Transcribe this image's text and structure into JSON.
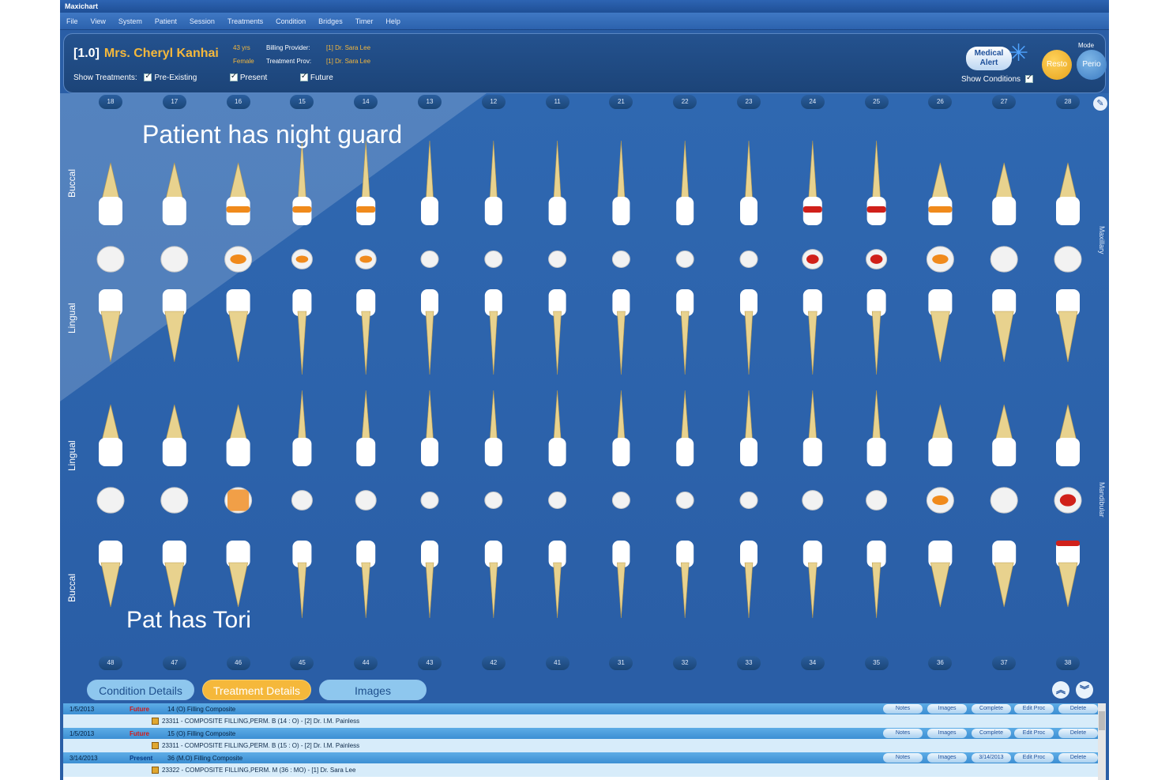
{
  "window": {
    "title": "Maxichart"
  },
  "menu": [
    "File",
    "View",
    "System",
    "Patient",
    "Session",
    "Treatments",
    "Condition",
    "Bridges",
    "Timer",
    "Help"
  ],
  "patient": {
    "id": "[1.0]",
    "name": "Mrs. Cheryl Kanhai",
    "age": "43 yrs",
    "gender": "Female",
    "billing_label": "Billing Provider:",
    "billing_value": "[1] Dr. Sara Lee",
    "treatment_label": "Treatment Prov:",
    "treatment_value": "[1] Dr. Sara Lee"
  },
  "show_treatments": {
    "label": "Show Treatments:",
    "options": [
      "Pre-Existing",
      "Present",
      "Future"
    ]
  },
  "medical_alert": {
    "line1": "Medical",
    "line2": "Alert"
  },
  "show_conditions": "Show Conditions",
  "mode": {
    "label": "Mode",
    "resto": "Resto",
    "perio": "Perio"
  },
  "upper_teeth": [
    "18",
    "17",
    "16",
    "15",
    "14",
    "13",
    "12",
    "11",
    "21",
    "22",
    "23",
    "24",
    "25",
    "26",
    "27",
    "28"
  ],
  "lower_teeth": [
    "48",
    "47",
    "46",
    "45",
    "44",
    "43",
    "42",
    "41",
    "31",
    "32",
    "33",
    "34",
    "35",
    "36",
    "37",
    "38"
  ],
  "side_labels": {
    "upper_buccal": "Buccal",
    "upper_lingual": "Lingual",
    "lower_lingual": "Lingual",
    "lower_buccal": "Buccal"
  },
  "right_labels": {
    "upper": "Maxillary",
    "lower": "Mandibular"
  },
  "notes": {
    "upper": "Patient has night guard",
    "lower": "Pat has Tori"
  },
  "colors": {
    "accent": "#f5b83b",
    "background": "#2a5ea6",
    "restoration_red": "#d0201a",
    "restoration_orange": "#f08a1c",
    "enamel": "#ffffff",
    "root": "#e8d28e"
  },
  "tabs": {
    "condition": "Condition Details",
    "treatment": "Treatment Details",
    "images": "Images"
  },
  "actions": {
    "notes": "Notes",
    "images": "Images",
    "complete": "Complete",
    "edit": "Edit Proc",
    "delete": "Delete"
  },
  "treatments": [
    {
      "date": "1/5/2013",
      "status": "Future",
      "desc": "14 (O) Filling Composite",
      "sub": "23311 - COMPOSITE FILLING,PERM. B (14 : O) - [2] Dr. I.M. Painless",
      "third": "Complete"
    },
    {
      "date": "1/5/2013",
      "status": "Future",
      "desc": "15 (O) Filling Composite",
      "sub": "23311 - COMPOSITE FILLING,PERM. B (15 : O) - [2] Dr. I.M. Painless",
      "third": "Complete"
    },
    {
      "date": "3/14/2013",
      "status": "Present",
      "desc": "36 (M.O) Filling Composite",
      "sub": "23322 - COMPOSITE FILLING,PERM. M (36 : MO) - [1] Dr. Sara Lee",
      "third": "3/14/2013"
    }
  ]
}
